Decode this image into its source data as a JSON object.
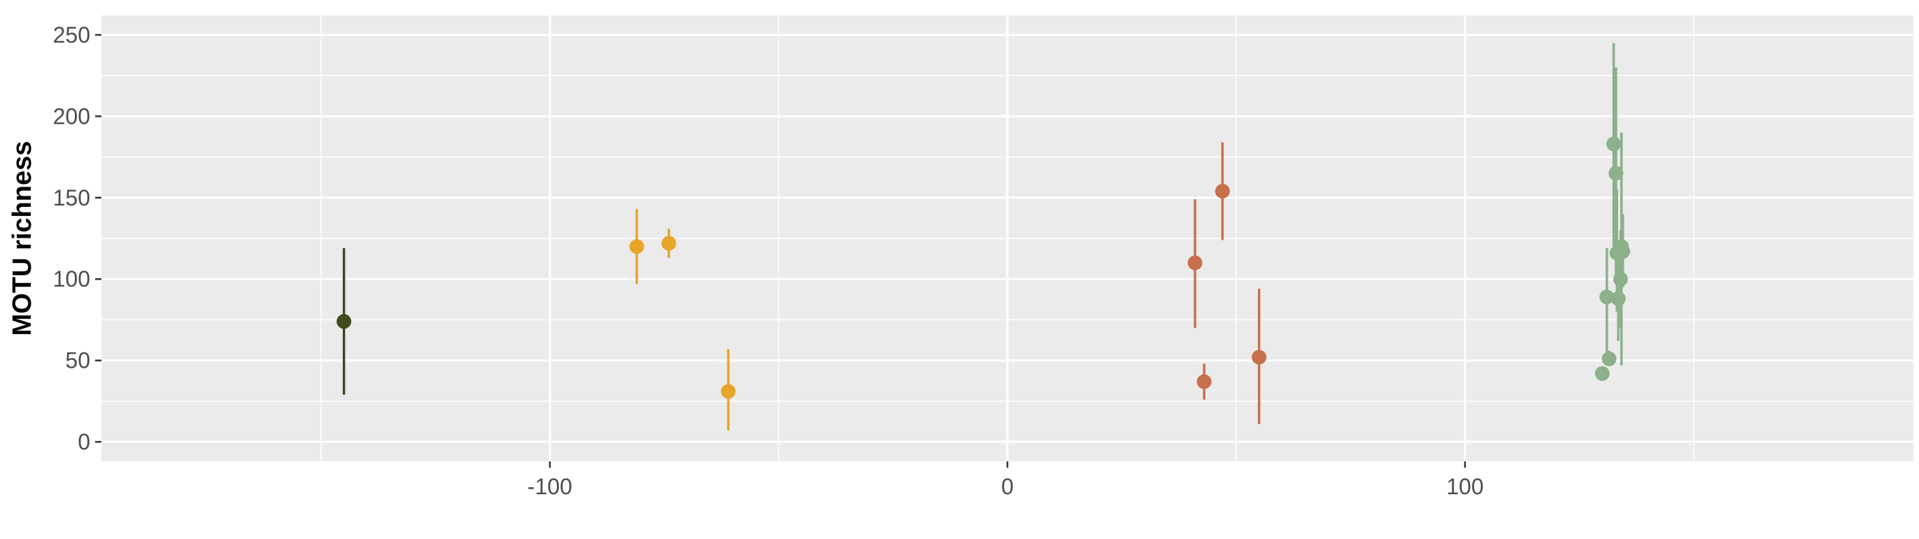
{
  "chart_data": {
    "type": "scatter",
    "title": "",
    "xlabel": "",
    "ylabel": "MOTU richness",
    "xlim": [
      -198,
      198
    ],
    "ylim": [
      -12,
      262
    ],
    "x_ticks": [
      -100,
      0,
      100
    ],
    "y_ticks": [
      0,
      50,
      100,
      150,
      200,
      250
    ],
    "grid": true,
    "legend": "none",
    "panel_background": "#ebebeb",
    "grid_color": "#ffffff",
    "series": [
      {
        "color": "#3f4a1e",
        "points": [
          {
            "x": -145,
            "y": 74,
            "ymin": 29,
            "ymax": 119
          }
        ]
      },
      {
        "color": "#e8a628",
        "points": [
          {
            "x": -81,
            "y": 120,
            "ymin": 97,
            "ymax": 143
          },
          {
            "x": -74,
            "y": 122,
            "ymin": 113,
            "ymax": 131
          },
          {
            "x": -61,
            "y": 31,
            "ymin": 7,
            "ymax": 57
          }
        ]
      },
      {
        "color": "#c8704e",
        "points": [
          {
            "x": 41,
            "y": 110,
            "ymin": 70,
            "ymax": 149
          },
          {
            "x": 43,
            "y": 37,
            "ymin": 26,
            "ymax": 48
          },
          {
            "x": 47,
            "y": 154,
            "ymin": 124,
            "ymax": 184
          },
          {
            "x": 55,
            "y": 52,
            "ymin": 11,
            "ymax": 94
          }
        ]
      },
      {
        "color": "#8bb08a",
        "points": [
          {
            "x": 130,
            "y": 42,
            "ymin": 42,
            "ymax": 42
          },
          {
            "x": 131,
            "y": 89,
            "ymin": 48,
            "ymax": 119
          },
          {
            "x": 131.5,
            "y": 51,
            "ymin": 47,
            "ymax": 56
          },
          {
            "x": 132.5,
            "y": 183,
            "ymin": 120,
            "ymax": 245
          },
          {
            "x": 133,
            "y": 165,
            "ymin": 100,
            "ymax": 230
          },
          {
            "x": 133.2,
            "y": 116,
            "ymin": 80,
            "ymax": 155
          },
          {
            "x": 133.5,
            "y": 88,
            "ymin": 62,
            "ymax": 116
          },
          {
            "x": 134,
            "y": 100,
            "ymin": 70,
            "ymax": 130
          },
          {
            "x": 134.2,
            "y": 120,
            "ymin": 47,
            "ymax": 190
          },
          {
            "x": 134.5,
            "y": 117,
            "ymin": 95,
            "ymax": 140
          }
        ]
      }
    ]
  }
}
